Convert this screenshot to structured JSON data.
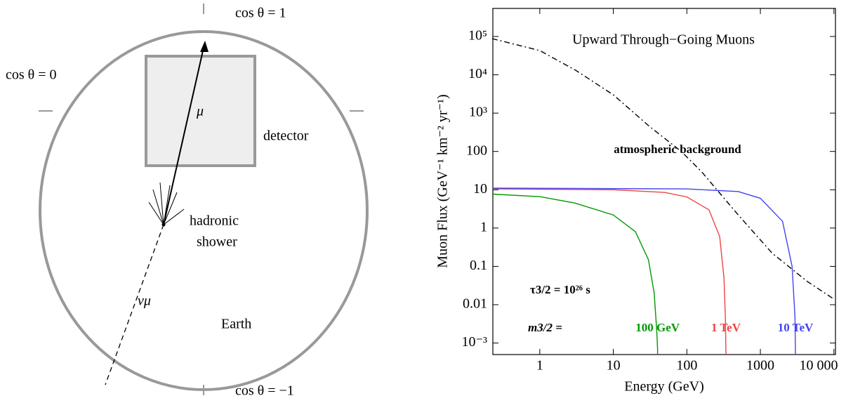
{
  "diagram": {
    "cos_top": "cos θ = 1",
    "cos_side": "cos θ = 0",
    "cos_bottom": "cos θ = −1",
    "muon": "μ",
    "detector": "detector",
    "shower": [
      "hadronic",
      "shower"
    ],
    "neutrino": "νμ",
    "earth": "Earth"
  },
  "chart_data": {
    "type": "line",
    "title": "Upward Through−Going Muons",
    "xlabel": "Energy (GeV)",
    "ylabel": "Muon Flux (GeV⁻¹ km⁻² yr⁻¹)",
    "log_x": true,
    "log_y": true,
    "xlim": [
      0.23,
      10500
    ],
    "ylim": [
      0.0005,
      540000
    ],
    "xticks": [
      1,
      10,
      100,
      1000,
      {
        "value": 10000,
        "label": "10 000"
      }
    ],
    "yticks": [
      {
        "value": 0.001,
        "label": "10⁻³"
      },
      0.01,
      0.1,
      1,
      10,
      100,
      {
        "value": 1000,
        "label": "10³"
      },
      {
        "value": 10000,
        "label": "10⁴"
      },
      {
        "value": 100000,
        "label": "10⁵"
      }
    ],
    "annotations": [
      "atmospheric background",
      "τ3/2 = 10²⁶ s",
      "m3/2 ="
    ],
    "series": [
      {
        "name": "atmospheric background",
        "color": "#000000",
        "style": "dashdot",
        "x": [
          0.224,
          1,
          3.1,
          10,
          31,
          84,
          160,
          490,
          1450,
          4370,
          10000
        ],
        "values": [
          88000,
          43000,
          13000,
          3000,
          450,
          100,
          29,
          2.3,
          0.22,
          0.04,
          0.014
        ]
      },
      {
        "name": "100 GeV",
        "color": "#009900",
        "x": [
          0.23,
          1,
          3,
          10,
          20,
          30,
          36,
          39,
          40,
          40
        ],
        "values": [
          7.7,
          6.6,
          4.5,
          2.2,
          0.8,
          0.15,
          0.02,
          0.002,
          0.0007,
          0.0005
        ]
      },
      {
        "name": "1 TeV",
        "color": "#ee4444",
        "x": [
          0.23,
          10,
          50,
          100,
          200,
          280,
          320,
          335,
          340
        ],
        "values": [
          10.5,
          10,
          8.5,
          6.5,
          3,
          0.6,
          0.05,
          0.004,
          0.0005
        ]
      },
      {
        "name": "10 TeV",
        "color": "#4444ee",
        "x": [
          0.23,
          100,
          500,
          1000,
          2000,
          2700,
          2950,
          3000
        ],
        "values": [
          11,
          10.5,
          9,
          6,
          1.5,
          0.1,
          0.005,
          0.0005
        ]
      }
    ]
  }
}
